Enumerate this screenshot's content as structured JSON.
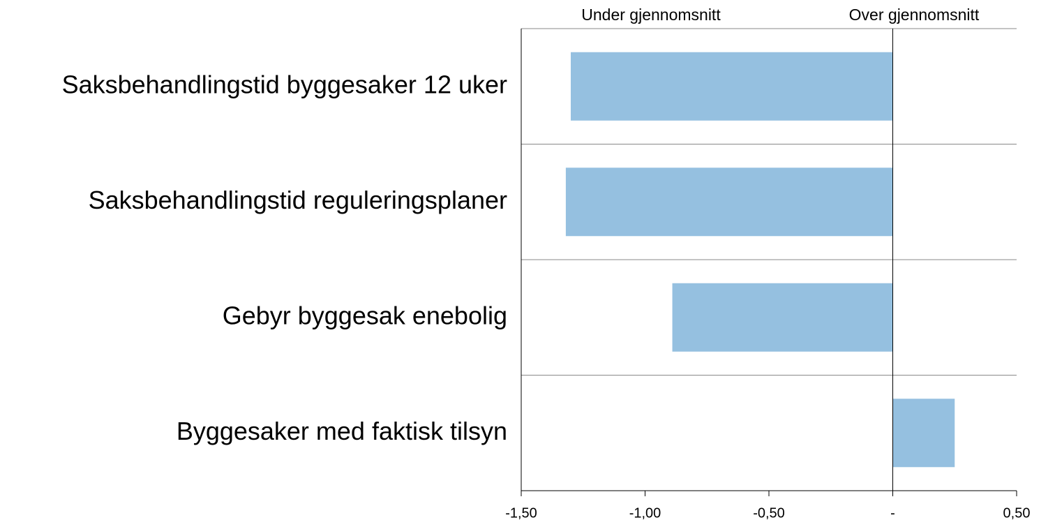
{
  "chart_data": {
    "type": "hbar",
    "annotations": [
      "Under gjennomsnitt",
      "Over gjennomsnitt"
    ],
    "categories": [
      "Saksbehandlingstid byggesaker 12 uker",
      "Saksbehandlingstid reguleringsplaner",
      "Gebyr byggesak enebolig",
      "Byggesaker med faktisk tilsyn"
    ],
    "values": [
      -1.3,
      -1.32,
      -0.89,
      0.25
    ],
    "color": "#95c0e0",
    "xlim": [
      -1.5,
      0.5
    ],
    "xticks": [
      {
        "value": -1.5,
        "label": "-1,50"
      },
      {
        "value": -1.0,
        "label": "-1,00"
      },
      {
        "value": -0.5,
        "label": "-0,50"
      },
      {
        "value": 0,
        "label": "-"
      },
      {
        "value": 0.5,
        "label": "0,50"
      }
    ],
    "grid": true
  }
}
